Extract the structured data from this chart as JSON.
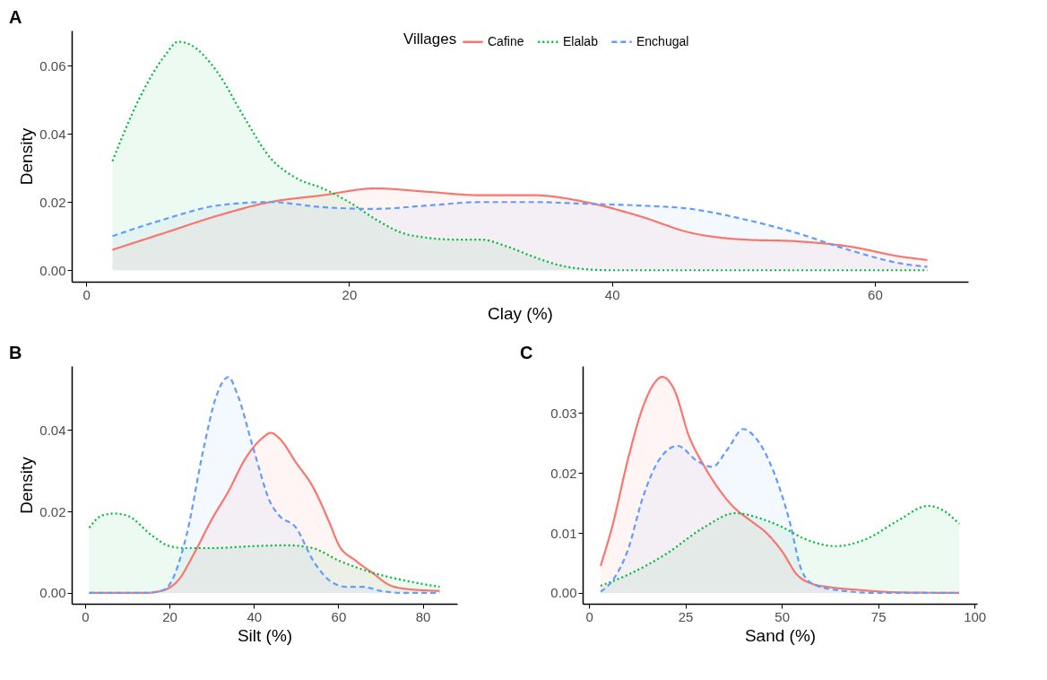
{
  "chart_data": [
    {
      "type": "area",
      "title": "A",
      "xlabel": "Clay (%)",
      "ylabel": "Density",
      "legend_title": "Villages",
      "legend": "top",
      "grid": false,
      "xlim": [
        -1.1,
        67.1
      ],
      "ylim": [
        -0.00335,
        0.0703
      ],
      "xticks": [
        0,
        20,
        40,
        60
      ],
      "yticks": [
        {
          "value": 0,
          "label": "0.00"
        },
        {
          "value": 0.02,
          "label": "0.02"
        },
        {
          "value": 0.04,
          "label": "0.04"
        },
        {
          "value": 0.06,
          "label": "0.06"
        }
      ],
      "series": [
        {
          "name": "Cafine",
          "color": "#f8766d",
          "line_style": "solid",
          "x": [
            2,
            6,
            10,
            14,
            18,
            22,
            26,
            30,
            34,
            38,
            42,
            46,
            50,
            54,
            58,
            62,
            64
          ],
          "values": [
            0.006,
            0.011,
            0.016,
            0.02,
            0.022,
            0.024,
            0.023,
            0.022,
            0.022,
            0.02,
            0.016,
            0.011,
            0.009,
            0.0085,
            0.007,
            0.004,
            0.003
          ]
        },
        {
          "name": "Elalab",
          "color": "#00ba38",
          "line_style": "dotted",
          "x": [
            2,
            4,
            6,
            7,
            8,
            10,
            12,
            14,
            16,
            18,
            20,
            22,
            24,
            26,
            28,
            30,
            32,
            34,
            36,
            38,
            40,
            45,
            50,
            55,
            60,
            64
          ],
          "values": [
            0.032,
            0.05,
            0.063,
            0.067,
            0.066,
            0.058,
            0.045,
            0.033,
            0.027,
            0.024,
            0.02,
            0.015,
            0.011,
            0.0095,
            0.009,
            0.009,
            0.007,
            0.004,
            0.0015,
            0.0003,
            0,
            0,
            0,
            0,
            0,
            0
          ]
        },
        {
          "name": "Enchugal",
          "color": "#619cff",
          "line_style": "dashed",
          "x": [
            2,
            6,
            10,
            14,
            18,
            22,
            26,
            30,
            34,
            38,
            42,
            46,
            50,
            54,
            58,
            62,
            64
          ],
          "values": [
            0.01,
            0.015,
            0.019,
            0.02,
            0.0185,
            0.018,
            0.019,
            0.02,
            0.02,
            0.0195,
            0.019,
            0.018,
            0.015,
            0.011,
            0.006,
            0.002,
            0.001
          ]
        }
      ]
    },
    {
      "type": "area",
      "title": "B",
      "xlabel": "Silt (%)",
      "ylabel": "Density",
      "legend": false,
      "grid": false,
      "xlim": [
        -3.15,
        88.15
      ],
      "ylim": [
        -0.00265,
        0.0557
      ],
      "xticks": [
        0,
        20,
        40,
        60,
        80
      ],
      "yticks": [
        {
          "value": 0,
          "label": "0.00"
        },
        {
          "value": 0.02,
          "label": "0.02"
        },
        {
          "value": 0.04,
          "label": "0.04"
        }
      ],
      "series": [
        {
          "color": "#f8766d",
          "line_style": "solid",
          "x": [
            1,
            14,
            18,
            22,
            26,
            30,
            34,
            38,
            42,
            44,
            46,
            50,
            54,
            58,
            60,
            64,
            68,
            72,
            76,
            84
          ],
          "values": [
            0,
            0,
            0.0005,
            0.003,
            0.01,
            0.018,
            0.025,
            0.033,
            0.038,
            0.0393,
            0.038,
            0.032,
            0.026,
            0.017,
            0.012,
            0.008,
            0.005,
            0.002,
            0.001,
            0.0005
          ]
        },
        {
          "color": "#00ba38",
          "line_style": "dotted",
          "x": [
            1,
            4,
            7,
            10,
            16,
            20,
            24,
            30,
            40,
            48,
            54,
            60,
            68,
            76,
            84
          ],
          "values": [
            0.016,
            0.019,
            0.0195,
            0.019,
            0.014,
            0.0115,
            0.011,
            0.011,
            0.0115,
            0.0117,
            0.011,
            0.008,
            0.005,
            0.003,
            0.0015
          ]
        },
        {
          "color": "#619cff",
          "line_style": "dashed",
          "x": [
            1,
            14,
            18,
            20,
            24,
            28,
            31,
            34,
            36,
            40,
            44,
            46,
            50,
            54,
            58,
            62,
            66,
            70,
            76,
            84
          ],
          "values": [
            0,
            0,
            0.0005,
            0.002,
            0.014,
            0.035,
            0.048,
            0.053,
            0.049,
            0.035,
            0.022,
            0.019,
            0.016,
            0.008,
            0.003,
            0.0015,
            0.0015,
            0.0005,
            0,
            0
          ]
        }
      ]
    },
    {
      "type": "area",
      "title": "C",
      "xlabel": "Sand (%)",
      "legend": false,
      "grid": false,
      "xlim": [
        -1.65,
        100.65
      ],
      "ylim": [
        -0.0018,
        0.0378
      ],
      "xticks": [
        0,
        25,
        50,
        75,
        100
      ],
      "yticks": [
        {
          "value": 0,
          "label": "0.00"
        },
        {
          "value": 0.01,
          "label": "0.01"
        },
        {
          "value": 0.02,
          "label": "0.02"
        },
        {
          "value": 0.03,
          "label": "0.03"
        }
      ],
      "series": [
        {
          "color": "#f8766d",
          "line_style": "solid",
          "x": [
            3,
            6,
            10,
            14,
            17,
            19,
            22,
            26,
            30,
            34,
            38,
            42,
            46,
            50,
            54,
            58,
            62,
            70,
            80,
            96
          ],
          "values": [
            0.0045,
            0.011,
            0.022,
            0.031,
            0.035,
            0.036,
            0.034,
            0.026,
            0.021,
            0.017,
            0.014,
            0.012,
            0.01,
            0.007,
            0.003,
            0.0015,
            0.001,
            0.0005,
            0.0001,
            0
          ]
        },
        {
          "color": "#00ba38",
          "line_style": "dotted",
          "x": [
            3,
            10,
            20,
            30,
            38,
            44,
            50,
            56,
            64,
            72,
            80,
            88,
            92,
            96
          ],
          "values": [
            0.0012,
            0.003,
            0.0065,
            0.011,
            0.0133,
            0.0125,
            0.011,
            0.009,
            0.0078,
            0.009,
            0.012,
            0.0145,
            0.0137,
            0.0115
          ]
        },
        {
          "color": "#619cff",
          "line_style": "dashed",
          "x": [
            3,
            6,
            10,
            14,
            18,
            23,
            28,
            32,
            36,
            40,
            43,
            48,
            52,
            55,
            58,
            64,
            75,
            96
          ],
          "values": [
            0.0002,
            0.002,
            0.007,
            0.016,
            0.022,
            0.0245,
            0.022,
            0.021,
            0.024,
            0.0273,
            0.026,
            0.02,
            0.012,
            0.004,
            0.0015,
            0.0005,
            0,
            0
          ]
        }
      ]
    }
  ]
}
